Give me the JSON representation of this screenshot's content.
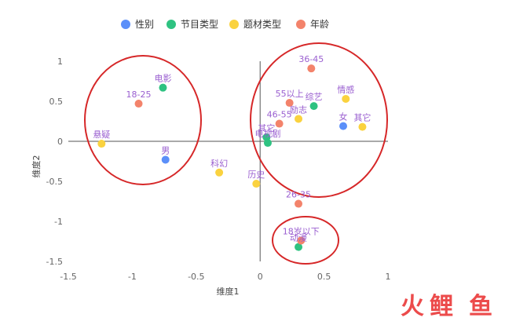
{
  "chart_data": {
    "type": "scatter",
    "xlabel": "维度1",
    "ylabel": "维度2",
    "xlim": [
      -1.5,
      1
    ],
    "ylim": [
      -1.5,
      1
    ],
    "xticks": [
      "-1.5",
      "-1",
      "-0.5",
      "0",
      "0.5",
      "1"
    ],
    "yticks": [
      "-1.5",
      "-1",
      "-0.5",
      "0",
      "0.5",
      "1"
    ],
    "legend_position": "top-center",
    "grid": false,
    "series": [
      {
        "name": "性别",
        "color": "#5b8ff9",
        "points": [
          {
            "label": "男",
            "x": -0.74,
            "y": -0.23
          },
          {
            "label": "女",
            "x": 0.65,
            "y": 0.19
          }
        ]
      },
      {
        "name": "节目类型",
        "color": "#2ec281",
        "points": [
          {
            "label": "电影",
            "x": -0.76,
            "y": 0.67
          },
          {
            "label": "综艺",
            "x": 0.42,
            "y": 0.44
          },
          {
            "label": "其它",
            "x": 0.05,
            "y": 0.05
          },
          {
            "label": "电视剧",
            "x": 0.06,
            "y": -0.02
          },
          {
            "label": "动漫",
            "x": 0.3,
            "y": -1.32
          }
        ]
      },
      {
        "name": "题材类型",
        "color": "#fad23f",
        "points": [
          {
            "label": "悬疑",
            "x": -1.24,
            "y": -0.03
          },
          {
            "label": "情感",
            "x": 0.67,
            "y": 0.53
          },
          {
            "label": "励志",
            "x": 0.3,
            "y": 0.28
          },
          {
            "label": "其它",
            "x": 0.8,
            "y": 0.18
          },
          {
            "label": "科幻",
            "x": -0.32,
            "y": -0.39
          },
          {
            "label": "历史",
            "x": -0.03,
            "y": -0.53
          }
        ]
      },
      {
        "name": "年龄",
        "color": "#f3836b",
        "points": [
          {
            "label": "18-25",
            "x": -0.95,
            "y": 0.47
          },
          {
            "label": "36-45",
            "x": 0.4,
            "y": 0.91
          },
          {
            "label": "55以上",
            "x": 0.23,
            "y": 0.48
          },
          {
            "label": "46-55",
            "x": 0.15,
            "y": 0.22
          },
          {
            "label": "26-35",
            "x": 0.3,
            "y": -0.78
          },
          {
            "label": "18岁以下",
            "x": 0.32,
            "y": -1.24
          }
        ]
      }
    ],
    "annotations": [
      {
        "type": "ellipse",
        "color": "#d62728",
        "description": "circle around 18-25, 电影, 悬疑, 男"
      },
      {
        "type": "ellipse",
        "color": "#d62728",
        "description": "circle around 36-45, 综艺, 情感, 女 cluster"
      },
      {
        "type": "ellipse",
        "color": "#d62728",
        "description": "circle around 18岁以下, 动漫"
      }
    ]
  },
  "watermark": {
    "text": "火鲤鱼",
    "color": "#ec4b4b"
  }
}
